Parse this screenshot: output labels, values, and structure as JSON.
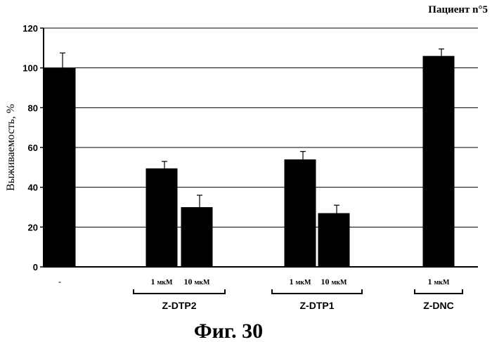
{
  "chart_data": {
    "type": "bar",
    "subtitle": "Пациент n°5",
    "ylabel": "Выживаемость, %",
    "ylim": [
      0,
      120
    ],
    "yticks": [
      0,
      20,
      40,
      60,
      80,
      100,
      120
    ],
    "grid": true,
    "bars_color": "#000000",
    "categories": [
      {
        "label": "-",
        "value": 100,
        "error": 7.5
      },
      {
        "label": "1 мкМ",
        "value": 49.5,
        "error": 3.5
      },
      {
        "label": "10 мкМ",
        "value": 30,
        "error": 6
      },
      {
        "label": "1 мкМ",
        "value": 54,
        "error": 4
      },
      {
        "label": "10 мкМ",
        "value": 27,
        "error": 4
      },
      {
        "label": "1 мкМ",
        "value": 106,
        "error": 3.5
      }
    ],
    "groups": [
      {
        "name": "Z-DTP2",
        "members": [
          1,
          2
        ]
      },
      {
        "name": "Z-DTP1",
        "members": [
          3,
          4
        ]
      },
      {
        "name": "Z-DNC",
        "members": [
          5
        ]
      }
    ]
  },
  "caption": "Фиг. 30"
}
